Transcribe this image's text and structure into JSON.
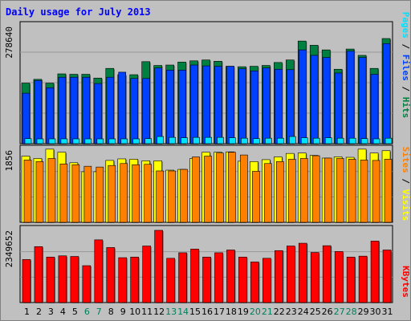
{
  "title": "Daily usage for July 2013",
  "colors": {
    "background": "#c0c0c0",
    "hits": "#008040",
    "files": "#0040ff",
    "pages": "#00e0ff",
    "visits": "#ffff00",
    "sites": "#ff8000",
    "kbytes": "#ff0000",
    "title": "#0000ff",
    "weekend_label": "#00805c"
  },
  "chart_data": [
    {
      "type": "bar",
      "panel": "requests",
      "y_max_label": "278640",
      "ylim": [
        0,
        278640
      ],
      "legend": [
        "Pages",
        "Files",
        "Hits"
      ],
      "categories": [
        "1",
        "2",
        "3",
        "4",
        "5",
        "6",
        "7",
        "8",
        "9",
        "10",
        "11",
        "12",
        "13",
        "14",
        "15",
        "16",
        "17",
        "18",
        "19",
        "20",
        "21",
        "22",
        "23",
        "24",
        "25",
        "26",
        "27",
        "28",
        "29",
        "30",
        "31"
      ],
      "weekend_days": [
        "6",
        "7",
        "13",
        "14",
        "20",
        "21",
        "27",
        "28"
      ],
      "series": [
        {
          "name": "Hits",
          "values": [
            144000,
            153000,
            144000,
            166000,
            165000,
            165000,
            156000,
            179000,
            164000,
            164000,
            195000,
            186000,
            187000,
            194000,
            197000,
            199000,
            196000,
            184000,
            183000,
            184000,
            186000,
            193000,
            199000,
            244000,
            234000,
            223000,
            177000,
            225000,
            210000,
            179000,
            250000
          ]
        },
        {
          "name": "Files",
          "values": [
            120000,
            150000,
            133000,
            158000,
            158000,
            158000,
            143000,
            158000,
            170000,
            155000,
            155000,
            180000,
            175000,
            175000,
            187000,
            185000,
            184000,
            184000,
            178000,
            173000,
            180000,
            177000,
            176000,
            223000,
            210000,
            205000,
            168000,
            220000,
            205000,
            165000,
            238000
          ]
        },
        {
          "name": "Pages",
          "values": [
            12000,
            10000,
            11000,
            10000,
            10000,
            10000,
            11000,
            10000,
            10000,
            11000,
            12000,
            17000,
            15000,
            14000,
            15000,
            15000,
            15000,
            14000,
            13000,
            12000,
            13000,
            13000,
            17000,
            14000,
            13000,
            14000,
            13000,
            13000,
            12000,
            11000,
            13000
          ]
        }
      ]
    },
    {
      "type": "bar",
      "panel": "visitors",
      "y_max_label": "1856",
      "ylim": [
        0,
        1856
      ],
      "legend": [
        "Sites",
        "Visits"
      ],
      "categories": [
        "1",
        "2",
        "3",
        "4",
        "5",
        "6",
        "7",
        "8",
        "9",
        "10",
        "11",
        "12",
        "13",
        "14",
        "15",
        "16",
        "17",
        "18",
        "19",
        "20",
        "21",
        "22",
        "23",
        "24",
        "25",
        "26",
        "27",
        "28",
        "29",
        "30",
        "31"
      ],
      "series": [
        {
          "name": "Visits",
          "values": [
            1700,
            1640,
            1880,
            1800,
            1530,
            1300,
            1300,
            1590,
            1630,
            1620,
            1580,
            1580,
            1340,
            1360,
            1640,
            1800,
            1800,
            1810,
            1570,
            1560,
            1610,
            1680,
            1770,
            1780,
            1720,
            1650,
            1680,
            1670,
            1880,
            1780,
            1840
          ]
        },
        {
          "name": "Sites",
          "values": [
            1600,
            1560,
            1640,
            1500,
            1480,
            1440,
            1420,
            1460,
            1510,
            1480,
            1490,
            1320,
            1320,
            1360,
            1680,
            1700,
            1780,
            1800,
            1730,
            1310,
            1510,
            1560,
            1620,
            1640,
            1710,
            1650,
            1640,
            1620,
            1600,
            1590,
            1620
          ]
        }
      ]
    },
    {
      "type": "bar",
      "panel": "kbytes",
      "y_max_label": "2349652",
      "ylim": [
        0,
        2349652
      ],
      "legend": [
        "KBytes"
      ],
      "categories": [
        "1",
        "2",
        "3",
        "4",
        "5",
        "6",
        "7",
        "8",
        "9",
        "10",
        "11",
        "12",
        "13",
        "14",
        "15",
        "16",
        "17",
        "18",
        "19",
        "20",
        "21",
        "22",
        "23",
        "24",
        "25",
        "26",
        "27",
        "28",
        "29",
        "30",
        "31"
      ],
      "series": [
        {
          "name": "KBytes",
          "values": [
            1400000,
            1820000,
            1480000,
            1520000,
            1500000,
            1200000,
            2040000,
            1790000,
            1460000,
            1480000,
            1840000,
            2350000,
            1440000,
            1620000,
            1740000,
            1480000,
            1620000,
            1710000,
            1480000,
            1320000,
            1440000,
            1690000,
            1840000,
            1930000,
            1630000,
            1850000,
            1660000,
            1480000,
            1510000,
            2000000,
            1710000
          ]
        }
      ]
    }
  ]
}
